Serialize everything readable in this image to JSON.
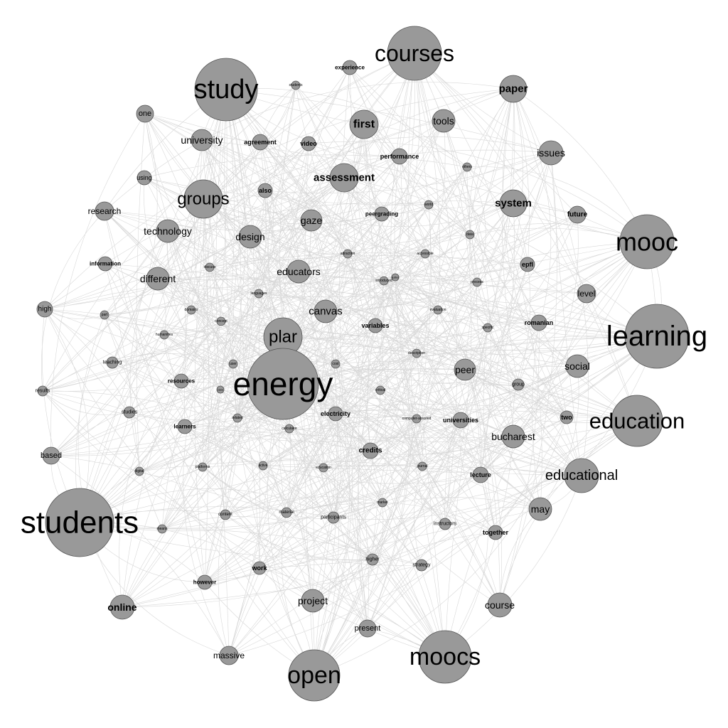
{
  "colors": {
    "node_fill": "#999999",
    "edge_stroke": "#b8b8b8",
    "label": "#000000",
    "background": "#ffffff"
  },
  "graph": {
    "type": "word co-occurrence network",
    "nodes": [
      {
        "id": "energy",
        "label": "energy",
        "weight": 100
      },
      {
        "id": "students",
        "label": "students",
        "weight": 95
      },
      {
        "id": "study",
        "label": "study",
        "weight": 90
      },
      {
        "id": "learning",
        "label": "learning",
        "weight": 90
      },
      {
        "id": "mooc",
        "label": "mooc",
        "weight": 80
      },
      {
        "id": "courses",
        "label": "courses",
        "weight": 78
      },
      {
        "id": "moocs",
        "label": "moocs",
        "weight": 75
      },
      {
        "id": "open",
        "label": "open",
        "weight": 72
      },
      {
        "id": "education",
        "label": "education",
        "weight": 72
      },
      {
        "id": "plar",
        "label": "plar",
        "weight": 55
      },
      {
        "id": "groups",
        "label": "groups",
        "weight": 55
      },
      {
        "id": "educational",
        "label": "educational",
        "weight": 48
      },
      {
        "id": "assessment",
        "label": "assessment",
        "weight": 40
      },
      {
        "id": "first",
        "label": "first",
        "weight": 40
      },
      {
        "id": "paper",
        "label": "paper",
        "weight": 38
      },
      {
        "id": "system",
        "label": "system",
        "weight": 38
      },
      {
        "id": "canvas",
        "label": "canvas",
        "weight": 32
      },
      {
        "id": "educators",
        "label": "educators",
        "weight": 32
      },
      {
        "id": "design",
        "label": "design",
        "weight": 30
      },
      {
        "id": "technology",
        "label": "technology",
        "weight": 30
      },
      {
        "id": "different",
        "label": "different",
        "weight": 30
      },
      {
        "id": "university",
        "label": "university",
        "weight": 28
      },
      {
        "id": "bucharest",
        "label": "bucharest",
        "weight": 30
      },
      {
        "id": "may",
        "label": "may",
        "weight": 30
      },
      {
        "id": "course",
        "label": "course",
        "weight": 30
      },
      {
        "id": "project",
        "label": "project",
        "weight": 28
      },
      {
        "id": "social",
        "label": "social",
        "weight": 30
      },
      {
        "id": "online",
        "label": "online",
        "weight": 30
      },
      {
        "id": "peer",
        "label": "peer",
        "weight": 28
      },
      {
        "id": "gaze",
        "label": "gaze",
        "weight": 26
      },
      {
        "id": "issues",
        "label": "issues",
        "weight": 30
      },
      {
        "id": "tools",
        "label": "tools",
        "weight": 28
      },
      {
        "id": "massive",
        "label": "massive",
        "weight": 24
      },
      {
        "id": "research",
        "label": "research",
        "weight": 22
      },
      {
        "id": "level",
        "label": "level",
        "weight": 22
      },
      {
        "id": "future",
        "label": "future",
        "weight": 20
      },
      {
        "id": "epfl",
        "label": "epfl",
        "weight": 18
      },
      {
        "id": "romanian",
        "label": "romanian",
        "weight": 20
      },
      {
        "id": "variables",
        "label": "variables",
        "weight": 18
      },
      {
        "id": "performance",
        "label": "performance",
        "weight": 20
      },
      {
        "id": "agreement",
        "label": "agreement",
        "weight": 20
      },
      {
        "id": "video",
        "label": "video",
        "weight": 18
      },
      {
        "id": "one",
        "label": "one",
        "weight": 20
      },
      {
        "id": "high",
        "label": "high",
        "weight": 18
      },
      {
        "id": "based",
        "label": "based",
        "weight": 22
      },
      {
        "id": "present",
        "label": "present",
        "weight": 22
      },
      {
        "id": "credits",
        "label": "credits",
        "weight": 20
      },
      {
        "id": "universities",
        "label": "universities",
        "weight": 20
      },
      {
        "id": "lecture",
        "label": "lecture",
        "weight": 20
      },
      {
        "id": "together",
        "label": "together",
        "weight": 18
      },
      {
        "id": "however",
        "label": "however",
        "weight": 18
      },
      {
        "id": "work",
        "label": "work",
        "weight": 16
      },
      {
        "id": "information",
        "label": "information",
        "weight": 18
      },
      {
        "id": "electricity",
        "label": "electricity",
        "weight": 18
      },
      {
        "id": "learners",
        "label": "learners",
        "weight": 18
      },
      {
        "id": "resources",
        "label": "resources",
        "weight": 18
      },
      {
        "id": "using",
        "label": "using",
        "weight": 16
      },
      {
        "id": "also",
        "label": "also",
        "weight": 16
      },
      {
        "id": "peergrading",
        "label": "peergrading",
        "weight": 16
      },
      {
        "id": "experience",
        "label": "experience",
        "weight": 16
      },
      {
        "id": "two",
        "label": "two",
        "weight": 14
      },
      {
        "id": "group",
        "label": "group",
        "weight": 14
      },
      {
        "id": "teaching",
        "label": "teaching",
        "weight": 14
      },
      {
        "id": "studies",
        "label": "studies",
        "weight": 14
      },
      {
        "id": "results",
        "label": "results",
        "weight": 12
      },
      {
        "id": "higher",
        "label": "higher",
        "weight": 14
      },
      {
        "id": "strategy",
        "label": "strategy",
        "weight": 14
      },
      {
        "id": "instructors",
        "label": "instructors",
        "weight": 14
      },
      {
        "id": "participants",
        "label": "participants",
        "weight": 14
      },
      {
        "id": "material",
        "label": "material",
        "weight": 12
      },
      {
        "id": "content",
        "label": "content",
        "weight": 12
      },
      {
        "id": "means",
        "label": "means",
        "weight": 10
      },
      {
        "id": "digital",
        "label": "digital",
        "weight": 10
      },
      {
        "id": "part",
        "label": "part",
        "weight": 10
      },
      {
        "id": "humanities",
        "label": "humanities",
        "weight": 10
      },
      {
        "id": "concept",
        "label": "concept",
        "weight": 10
      },
      {
        "id": "discuss",
        "label": "discuss",
        "weight": 10
      },
      {
        "id": "students2",
        "label": "students",
        "weight": 8
      },
      {
        "id": "user",
        "label": "user",
        "weight": 8
      },
      {
        "id": "critical",
        "label": "critical",
        "weight": 8
      },
      {
        "id": "description",
        "label": "description",
        "weight": 8
      },
      {
        "id": "computer",
        "label": "computer-assisted",
        "weight": 8
      },
      {
        "id": "platforms",
        "label": "platforms",
        "weight": 8
      },
      {
        "id": "education2",
        "label": "education",
        "weight": 8
      },
      {
        "id": "journal",
        "label": "journal",
        "weight": 8
      },
      {
        "id": "market",
        "label": "market",
        "weight": 8
      },
      {
        "id": "active",
        "label": "active",
        "weight": 8
      },
      {
        "id": "calculator",
        "label": "calculator",
        "weight": 8
      },
      {
        "id": "related",
        "label": "related",
        "weight": 8
      },
      {
        "id": "attraction",
        "label": "attraction",
        "weight": 8
      },
      {
        "id": "accessible",
        "label": "accessible",
        "weight": 8
      },
      {
        "id": "introduced",
        "label": "introduced",
        "weight": 8
      },
      {
        "id": "process",
        "label": "process",
        "weight": 8
      },
      {
        "id": "languages",
        "label": "languages",
        "weight": 8
      },
      {
        "id": "evaluation",
        "label": "evaluation",
        "weight": 8
      },
      {
        "id": "specific",
        "label": "specific",
        "weight": 8
      },
      {
        "id": "others",
        "label": "others",
        "weight": 8
      },
      {
        "id": "world",
        "label": "world",
        "weight": 8
      },
      {
        "id": "data",
        "label": "data",
        "weight": 8
      },
      {
        "id": "domains",
        "label": "domains",
        "weight": 8
      },
      {
        "id": "author",
        "label": "author",
        "weight": 8
      },
      {
        "id": "cost",
        "label": "cost",
        "weight": 6
      },
      {
        "id": "case",
        "label": "case",
        "weight": 6
      }
    ]
  }
}
